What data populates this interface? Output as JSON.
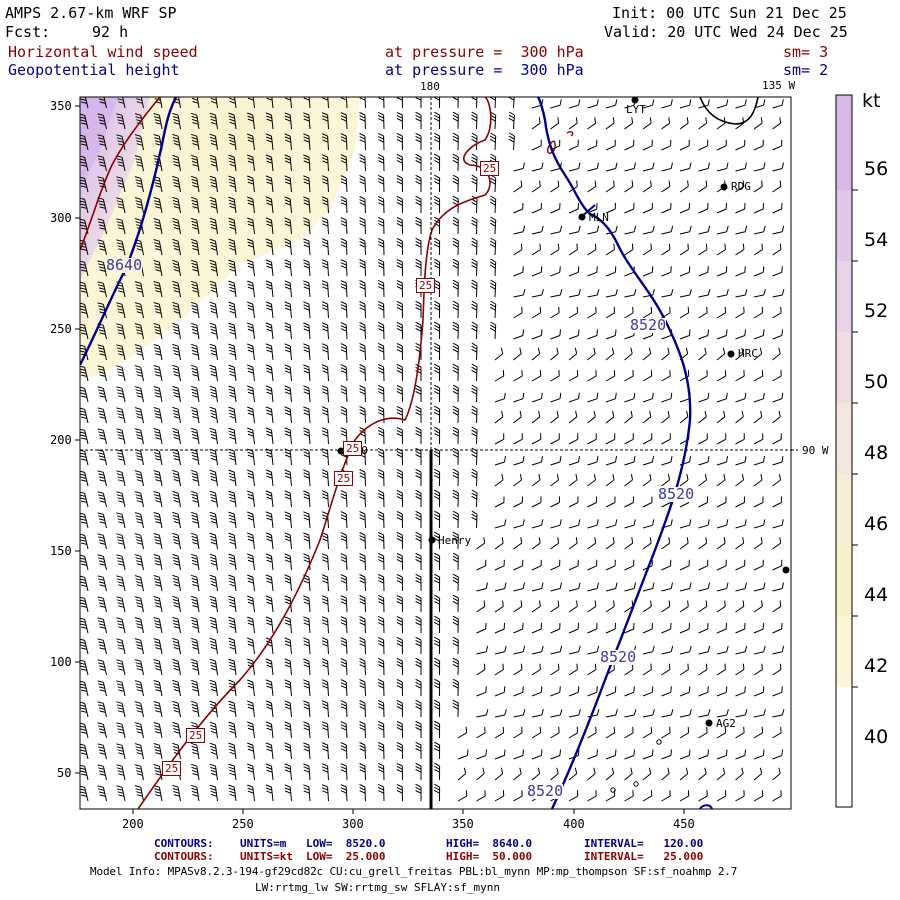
{
  "header": {
    "model": "AMPS 2.67-km WRF SP",
    "fcst_label": "Fcst:",
    "fcst_value": "92 h",
    "init": "Init: 00 UTC Sun 21 Dec 25",
    "valid": "Valid: 20 UTC Wed 24 Dec 25"
  },
  "fields": [
    {
      "name": "Horizontal wind speed",
      "level": "at pressure =  300 hPa",
      "sm": "sm= 3",
      "color": "#8b0000"
    },
    {
      "name": "Geopotential height",
      "level": "at pressure =  300 hPa",
      "sm": "sm= 2",
      "color": "#00008b"
    }
  ],
  "map": {
    "x_ticks": [
      "200",
      "250",
      "300",
      "350",
      "400",
      "450"
    ],
    "y_ticks": [
      "350",
      "300",
      "250",
      "200",
      "150",
      "100",
      "50"
    ],
    "meridian_labels": [
      "180",
      "135 W",
      "90 W"
    ],
    "stations": [
      {
        "label": "LYT"
      },
      {
        "label": "RDG"
      },
      {
        "label": "MLN"
      },
      {
        "label": "HRC"
      },
      {
        "label": "NEO"
      },
      {
        "label": "Henry"
      },
      {
        "label": "AG2"
      },
      {
        "label": ""
      }
    ],
    "height_contour_labels": [
      "8640",
      "8520",
      "8520",
      "8520",
      "8520"
    ],
    "speed_contour_labels": [
      "25",
      "25",
      "25",
      "25",
      "25",
      "25"
    ]
  },
  "colorbar": {
    "unit": "kt",
    "labels": [
      "56",
      "54",
      "52",
      "50",
      "48",
      "46",
      "44",
      "42",
      "40"
    ],
    "colors": [
      "#d8b8e8",
      "#e2c6ea",
      "#e9d2e8",
      "#efdde4",
      "#f3e6de",
      "#f5edd4",
      "#f7f1c8",
      "#fbf7d6",
      "#ffffff"
    ]
  },
  "footer": {
    "contours_blue": {
      "label": "CONTOURS:",
      "units": "UNITS=m",
      "low": "LOW=  8520.0",
      "high": "HIGH=  8640.0",
      "interval": "INTERVAL=   120.00"
    },
    "contours_red": {
      "label": "CONTOURS:",
      "units": "UNITS=kt",
      "low": "LOW=  25.000",
      "high": "HIGH=  50.000",
      "interval": "INTERVAL=   25.000"
    },
    "model_info_1": "Model Info: MPASv8.2.3-194-gf29cd82c CU:cu_grell_freitas PBL:bl_mynn MP:mp_thompson SF:sf_noahmp 2.7",
    "model_info_2": "LW:rrtmg_lw SW:rrtmg_sw SFLAY:sf_mynn"
  }
}
